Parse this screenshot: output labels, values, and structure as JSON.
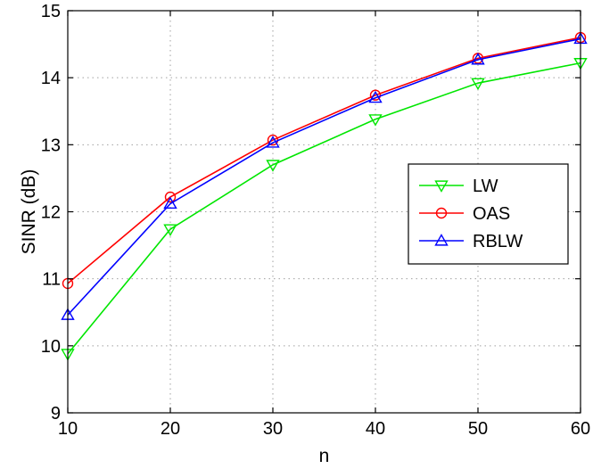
{
  "chart_data": {
    "type": "line",
    "title": "",
    "xlabel": "n",
    "ylabel": "SINR (dB)",
    "x": [
      10,
      20,
      30,
      40,
      50,
      60
    ],
    "xlim": [
      10,
      60
    ],
    "ylim": [
      9,
      15
    ],
    "xticks": [
      10,
      20,
      30,
      40,
      50,
      60
    ],
    "yticks": [
      9,
      10,
      11,
      12,
      13,
      14,
      15
    ],
    "grid": true,
    "legend_position": "right",
    "series": [
      {
        "name": "LW",
        "color": "#00e600",
        "marker": "triangle-down",
        "values": [
          9.88,
          11.74,
          12.7,
          13.38,
          13.92,
          14.22
        ]
      },
      {
        "name": "OAS",
        "color": "#ff0000",
        "marker": "circle",
        "values": [
          10.93,
          12.22,
          13.07,
          13.74,
          14.29,
          14.6
        ]
      },
      {
        "name": "RBLW",
        "color": "#0000ff",
        "marker": "triangle-up",
        "values": [
          10.46,
          12.12,
          13.03,
          13.7,
          14.27,
          14.58
        ]
      }
    ]
  }
}
